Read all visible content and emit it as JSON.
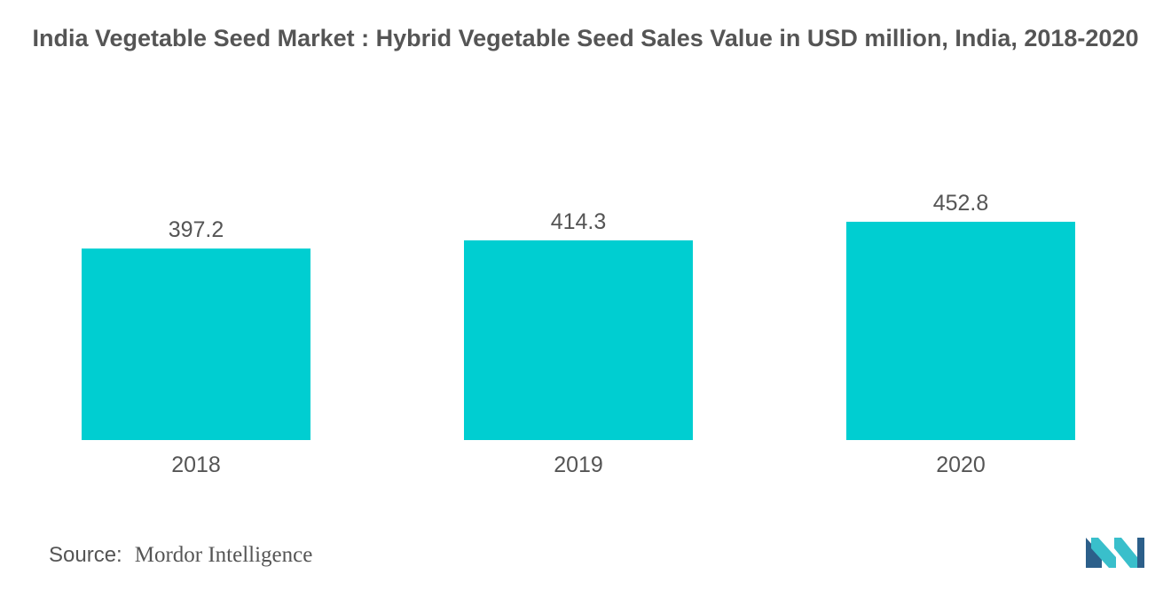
{
  "title": "India Vegetable Seed Market : Hybrid Vegetable Seed Sales Value in USD million, India, 2018-2020",
  "source": {
    "label": "Source:",
    "name": "Mordor Intelligence"
  },
  "logo": {
    "icon": "mordor-intelligence-logo"
  },
  "colors": {
    "bar": "#00CED1",
    "text": "#555555",
    "logo_dark": "#2C5F8A",
    "logo_light": "#39BFCB"
  },
  "chart_data": {
    "type": "bar",
    "categories": [
      "2018",
      "2019",
      "2020"
    ],
    "values": [
      397.2,
      414.3,
      452.8
    ],
    "data_labels": [
      "397.2",
      "414.3",
      "452.8"
    ],
    "title": "India Vegetable Seed Market : Hybrid Vegetable Seed Sales Value in USD million, India, 2018-2020",
    "xlabel": "",
    "ylabel": "",
    "grid": false,
    "legend": "none"
  }
}
